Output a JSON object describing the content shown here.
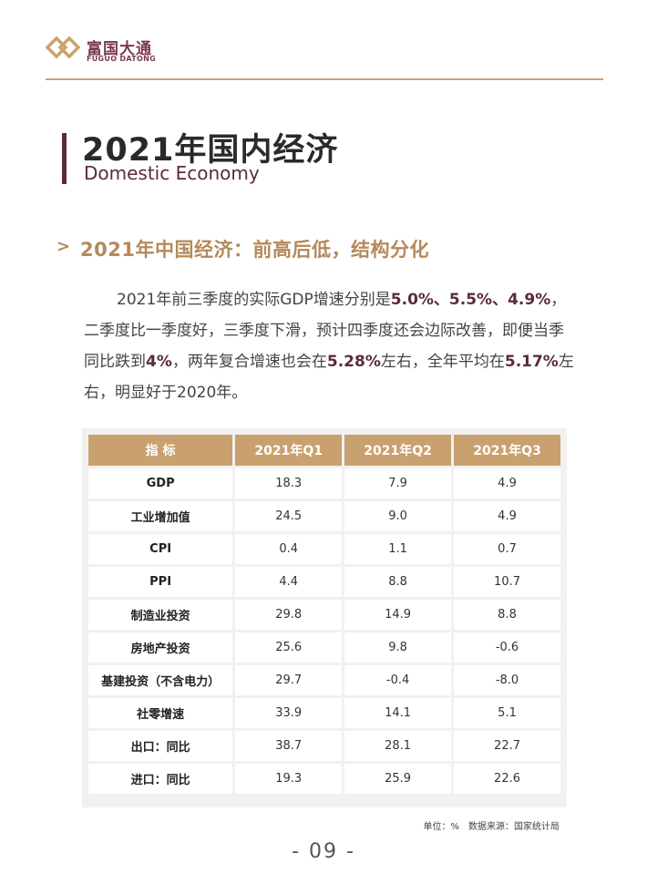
{
  "brand": {
    "name_cn": "富国大通",
    "name_en": "FUGUO DATONG"
  },
  "title": {
    "cn": "2021年国内经济",
    "en": "Domestic Economy"
  },
  "section": {
    "chevron": ">",
    "title": "2021年中国经济：前高后低，结构分化"
  },
  "paragraph": {
    "s1": "2021年前三季度的实际GDP增速分别是",
    "h1": "5.0%、5.5%、4.9%",
    "s2": "，二季度比一季度好，三季度下滑，预计四季度还会边际改善，即便当季同比跌到",
    "h2": "4%",
    "s3": "，两年复合增速也会在",
    "h3": "5.28%",
    "s4": "左右，全年平均在",
    "h4": "5.17%",
    "s5": "左右，明显好于2020年。"
  },
  "table": {
    "headers": [
      "指 标",
      "2021年Q1",
      "2021年Q2",
      "2021年Q3"
    ],
    "rows": [
      [
        "GDP",
        "18.3",
        "7.9",
        "4.9"
      ],
      [
        "工业增加值",
        "24.5",
        "9.0",
        "4.9"
      ],
      [
        "CPI",
        "0.4",
        "1.1",
        "0.7"
      ],
      [
        "PPI",
        "4.4",
        "8.8",
        "10.7"
      ],
      [
        "制造业投资",
        "29.8",
        "14.9",
        "8.8"
      ],
      [
        "房地产投资",
        "25.6",
        "9.8",
        "-0.6"
      ],
      [
        "基建投资（不含电力）",
        "29.7",
        "-0.4",
        "-8.0"
      ],
      [
        "社零增速",
        "33.9",
        "14.1",
        "5.1"
      ],
      [
        "出口：同比",
        "38.7",
        "28.1",
        "22.7"
      ],
      [
        "进口：同比",
        "19.3",
        "25.9",
        "22.6"
      ]
    ]
  },
  "source": "单位：%　数据来源：国家统计局",
  "page_number": "- 09 -",
  "colors": {
    "accent_gold": "#c9a16f",
    "accent_plum": "#5a2b38"
  },
  "icons": {
    "logo": "fuguo-datong-logo-icon",
    "section": "chevron-right-icon"
  }
}
